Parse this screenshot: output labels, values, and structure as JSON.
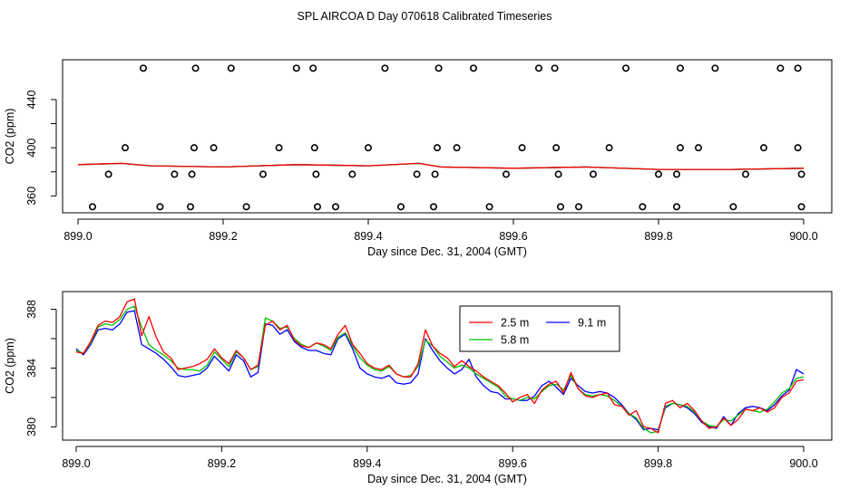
{
  "title": "SPL AIRCOA D  Day 070618  Calibrated Timeseries",
  "chart_data": [
    {
      "type": "scatter",
      "xlabel": "Day since Dec. 31, 2004 (GMT)",
      "ylabel": "CO2 (ppm)",
      "xlim": [
        899.0,
        900.0
      ],
      "ylim": [
        346,
        473
      ],
      "x_ticks": [
        "899.0",
        "899.2",
        "899.4",
        "899.6",
        "899.8",
        "900.0"
      ],
      "y_ticks": [
        "360",
        "400",
        "440"
      ],
      "points": [
        [
          899.09,
          466
        ],
        [
          899.162,
          466
        ],
        [
          899.211,
          466
        ],
        [
          899.301,
          466
        ],
        [
          899.324,
          466
        ],
        [
          899.423,
          466
        ],
        [
          899.497,
          466
        ],
        [
          899.545,
          466
        ],
        [
          899.635,
          466
        ],
        [
          899.657,
          466
        ],
        [
          899.755,
          466
        ],
        [
          899.83,
          466
        ],
        [
          899.878,
          466
        ],
        [
          899.968,
          466
        ],
        [
          899.992,
          466
        ],
        [
          899.065,
          400
        ],
        [
          899.16,
          400
        ],
        [
          899.187,
          400
        ],
        [
          899.277,
          400
        ],
        [
          899.326,
          400
        ],
        [
          899.4,
          400
        ],
        [
          899.495,
          400
        ],
        [
          899.522,
          400
        ],
        [
          899.612,
          400
        ],
        [
          899.659,
          400
        ],
        [
          899.732,
          400
        ],
        [
          899.83,
          400
        ],
        [
          899.855,
          400
        ],
        [
          899.945,
          400
        ],
        [
          899.992,
          400
        ],
        [
          899.042,
          378
        ],
        [
          899.133,
          378
        ],
        [
          899.157,
          378
        ],
        [
          899.255,
          378
        ],
        [
          899.328,
          378
        ],
        [
          899.378,
          378
        ],
        [
          899.467,
          378
        ],
        [
          899.492,
          378
        ],
        [
          899.59,
          378
        ],
        [
          899.662,
          378
        ],
        [
          899.71,
          378
        ],
        [
          899.8,
          378
        ],
        [
          899.825,
          378
        ],
        [
          899.92,
          378
        ],
        [
          899.997,
          378
        ],
        [
          899.02,
          351
        ],
        [
          899.113,
          351
        ],
        [
          899.155,
          351
        ],
        [
          899.232,
          351
        ],
        [
          899.33,
          351
        ],
        [
          899.355,
          351
        ],
        [
          899.445,
          351
        ],
        [
          899.49,
          351
        ],
        [
          899.567,
          351
        ],
        [
          899.665,
          351
        ],
        [
          899.69,
          351
        ],
        [
          899.778,
          351
        ],
        [
          899.825,
          351
        ],
        [
          899.903,
          351
        ],
        [
          899.997,
          351
        ]
      ],
      "series": [
        {
          "name": "2.5 m",
          "color": "#ff0000",
          "x": [
            899.0,
            899.06,
            899.1,
            899.2,
            899.3,
            899.4,
            899.47,
            899.5,
            899.6,
            899.7,
            899.8,
            899.9,
            900.0
          ],
          "values": [
            386,
            387,
            385,
            384,
            386,
            385,
            387,
            384,
            383,
            384,
            382,
            382,
            383
          ]
        },
        {
          "name": "5.8 m",
          "color": "#00c000",
          "x": [
            899.0,
            899.06,
            899.1,
            899.2,
            899.3,
            899.4,
            899.47,
            899.5,
            899.6,
            899.7,
            899.8,
            899.9,
            900.0
          ],
          "values": [
            386,
            387,
            385,
            384,
            386,
            385,
            387,
            384,
            383,
            384,
            382,
            382,
            383
          ]
        },
        {
          "name": "9.1 m",
          "color": "#0000ff",
          "x": [
            899.0,
            899.06,
            899.1,
            899.2,
            899.3,
            899.4,
            899.47,
            899.5,
            899.6,
            899.7,
            899.8,
            899.9,
            900.0
          ],
          "values": [
            386,
            387,
            385,
            384,
            386,
            385,
            387,
            384,
            383,
            384,
            382,
            382,
            383
          ]
        }
      ]
    },
    {
      "type": "line",
      "xlabel": "Day since Dec. 31, 2004 (GMT)",
      "ylabel": "CO2 (ppm)",
      "xlim": [
        899.0,
        900.0
      ],
      "ylim": [
        379.1,
        389.2
      ],
      "x_ticks": [
        "899.0",
        "899.2",
        "899.4",
        "899.6",
        "899.8",
        "900.0"
      ],
      "y_ticks": [
        "380",
        "384",
        "388"
      ],
      "legend": {
        "position": "top-right",
        "entries": [
          "2.5 m",
          "5.8 m",
          "9.1 m"
        ]
      },
      "series": [
        {
          "name": "2.5 m",
          "color": "#ff0000",
          "x": [
            899.0,
            899.01,
            899.02,
            899.03,
            899.04,
            899.05,
            899.06,
            899.07,
            899.08,
            899.09,
            899.1,
            899.11,
            899.12,
            899.13,
            899.14,
            899.15,
            899.16,
            899.17,
            899.18,
            899.19,
            899.2,
            899.21,
            899.22,
            899.23,
            899.24,
            899.25,
            899.26,
            899.27,
            899.28,
            899.29,
            899.3,
            899.31,
            899.32,
            899.33,
            899.34,
            899.35,
            899.36,
            899.37,
            899.38,
            899.39,
            899.4,
            899.41,
            899.42,
            899.43,
            899.44,
            899.45,
            899.46,
            899.47,
            899.48,
            899.49,
            899.5,
            899.51,
            899.52,
            899.53,
            899.54,
            899.55,
            899.56,
            899.57,
            899.58,
            899.59,
            899.6,
            899.61,
            899.62,
            899.63,
            899.64,
            899.65,
            899.66,
            899.67,
            899.68,
            899.69,
            899.7,
            899.71,
            899.72,
            899.73,
            899.74,
            899.75,
            899.76,
            899.77,
            899.78,
            899.79,
            899.8,
            899.81,
            899.82,
            899.83,
            899.84,
            899.85,
            899.86,
            899.87,
            899.88,
            899.89,
            899.9,
            899.91,
            899.92,
            899.93,
            899.94,
            899.95,
            899.96,
            899.97,
            899.98,
            899.99,
            900.0
          ],
          "values": [
            385.1,
            385.0,
            385.8,
            386.9,
            387.2,
            387.1,
            387.5,
            388.5,
            388.7,
            386.2,
            387.5,
            386.1,
            385.1,
            384.7,
            383.9,
            384.0,
            384.1,
            384.3,
            384.6,
            385.3,
            384.7,
            384.3,
            385.2,
            384.7,
            383.9,
            384.2,
            386.9,
            387.2,
            386.6,
            386.9,
            385.9,
            385.5,
            385.4,
            385.7,
            385.6,
            385.3,
            386.3,
            386.9,
            385.6,
            385.0,
            384.3,
            384.0,
            383.9,
            384.2,
            383.6,
            383.4,
            383.4,
            384.3,
            386.6,
            385.5,
            385.0,
            384.7,
            384.1,
            384.5,
            384.1,
            383.8,
            383.4,
            383.1,
            382.8,
            382.3,
            381.7,
            382.0,
            382.2,
            381.6,
            382.5,
            382.9,
            383.1,
            382.3,
            383.7,
            382.6,
            382.1,
            382.0,
            382.2,
            382.3,
            381.5,
            381.4,
            380.8,
            381.1,
            380.0,
            379.9,
            379.6,
            381.6,
            381.8,
            381.3,
            381.6,
            381.1,
            380.4,
            379.9,
            380.0,
            380.6,
            380.1,
            380.5,
            381.2,
            381.1,
            381.3,
            381.0,
            381.3,
            382.0,
            382.3,
            383.1,
            383.2
          ]
        },
        {
          "name": "5.8 m",
          "color": "#00c000",
          "x": [
            899.0,
            899.01,
            899.02,
            899.03,
            899.04,
            899.05,
            899.06,
            899.07,
            899.08,
            899.09,
            899.1,
            899.11,
            899.12,
            899.13,
            899.14,
            899.15,
            899.16,
            899.17,
            899.18,
            899.19,
            899.2,
            899.21,
            899.22,
            899.23,
            899.24,
            899.25,
            899.26,
            899.27,
            899.28,
            899.29,
            899.3,
            899.31,
            899.32,
            899.33,
            899.34,
            899.35,
            899.36,
            899.37,
            899.38,
            899.39,
            899.4,
            899.41,
            899.42,
            899.43,
            899.44,
            899.45,
            899.46,
            899.47,
            899.48,
            899.49,
            899.5,
            899.51,
            899.52,
            899.53,
            899.54,
            899.55,
            899.56,
            899.57,
            899.58,
            899.59,
            899.6,
            899.61,
            899.62,
            899.63,
            899.64,
            899.65,
            899.66,
            899.67,
            899.68,
            899.69,
            899.7,
            899.71,
            899.72,
            899.73,
            899.74,
            899.75,
            899.76,
            899.77,
            899.78,
            899.79,
            899.8,
            899.81,
            899.82,
            899.83,
            899.84,
            899.85,
            899.86,
            899.87,
            899.88,
            899.89,
            899.9,
            899.91,
            899.92,
            899.93,
            899.94,
            899.95,
            899.96,
            899.97,
            899.98,
            899.99,
            900.0
          ],
          "values": [
            385.2,
            385.0,
            385.7,
            386.8,
            387.0,
            386.9,
            387.3,
            388.0,
            388.2,
            386.8,
            385.6,
            385.2,
            384.9,
            384.5,
            384.0,
            383.9,
            383.9,
            383.8,
            384.2,
            385.1,
            384.6,
            384.1,
            385.1,
            384.7,
            383.9,
            384.1,
            387.4,
            387.2,
            386.7,
            386.8,
            386.0,
            385.6,
            385.4,
            385.7,
            385.5,
            385.2,
            386.1,
            386.4,
            385.5,
            384.7,
            384.2,
            383.9,
            383.8,
            384.1,
            383.6,
            383.4,
            383.5,
            384.1,
            385.9,
            385.5,
            384.8,
            384.4,
            384.0,
            384.2,
            384.0,
            383.6,
            383.3,
            383.0,
            382.7,
            382.1,
            381.9,
            381.8,
            382.0,
            381.9,
            382.4,
            382.8,
            382.9,
            382.5,
            383.5,
            382.6,
            382.2,
            382.1,
            382.2,
            382.1,
            381.8,
            381.4,
            380.9,
            380.6,
            379.9,
            379.6,
            379.7,
            381.4,
            381.6,
            381.5,
            381.4,
            381.0,
            380.4,
            380.1,
            380.0,
            380.5,
            380.4,
            380.8,
            381.2,
            381.1,
            381.0,
            381.2,
            381.7,
            382.3,
            382.6,
            383.3,
            383.4
          ]
        },
        {
          "name": "9.1 m",
          "color": "#0000ff",
          "x": [
            899.0,
            899.01,
            899.02,
            899.03,
            899.04,
            899.05,
            899.06,
            899.07,
            899.08,
            899.09,
            899.1,
            899.11,
            899.12,
            899.13,
            899.14,
            899.15,
            899.16,
            899.17,
            899.18,
            899.19,
            899.2,
            899.21,
            899.22,
            899.23,
            899.24,
            899.25,
            899.26,
            899.27,
            899.28,
            899.29,
            899.3,
            899.31,
            899.32,
            899.33,
            899.34,
            899.35,
            899.36,
            899.37,
            899.38,
            899.39,
            899.4,
            899.41,
            899.42,
            899.43,
            899.44,
            899.45,
            899.46,
            899.47,
            899.48,
            899.49,
            899.5,
            899.51,
            899.52,
            899.53,
            899.54,
            899.55,
            899.56,
            899.57,
            899.58,
            899.59,
            899.6,
            899.61,
            899.62,
            899.63,
            899.64,
            899.65,
            899.66,
            899.67,
            899.68,
            899.69,
            899.7,
            899.71,
            899.72,
            899.73,
            899.74,
            899.75,
            899.76,
            899.77,
            899.78,
            899.79,
            899.8,
            899.81,
            899.82,
            899.83,
            899.84,
            899.85,
            899.86,
            899.87,
            899.88,
            899.89,
            899.9,
            899.91,
            899.92,
            899.93,
            899.94,
            899.95,
            899.96,
            899.97,
            899.98,
            899.99,
            900.0
          ],
          "values": [
            385.3,
            384.9,
            385.6,
            386.6,
            386.7,
            386.6,
            387.0,
            387.8,
            387.9,
            385.6,
            385.3,
            385.0,
            384.6,
            384.1,
            383.5,
            383.4,
            383.5,
            383.6,
            384.0,
            384.8,
            384.3,
            383.8,
            384.9,
            384.5,
            383.4,
            383.7,
            387.0,
            386.9,
            386.3,
            386.6,
            385.8,
            385.4,
            385.2,
            385.2,
            385.0,
            384.9,
            386.0,
            386.3,
            385.3,
            384.0,
            383.6,
            383.4,
            383.3,
            383.5,
            383.0,
            382.9,
            383.0,
            383.6,
            386.0,
            385.2,
            384.5,
            384.0,
            383.6,
            383.9,
            384.6,
            383.4,
            382.8,
            382.4,
            382.3,
            381.9,
            381.9,
            381.8,
            381.8,
            382.1,
            382.8,
            383.1,
            382.7,
            382.2,
            383.3,
            382.8,
            382.4,
            382.3,
            382.4,
            382.3,
            382.0,
            381.5,
            380.9,
            380.5,
            379.8,
            379.9,
            379.8,
            381.3,
            381.6,
            381.5,
            381.3,
            380.9,
            380.3,
            380.0,
            379.9,
            380.7,
            380.1,
            380.9,
            381.3,
            381.4,
            381.3,
            381.1,
            381.5,
            382.1,
            382.5,
            383.9,
            383.6
          ]
        }
      ]
    }
  ]
}
